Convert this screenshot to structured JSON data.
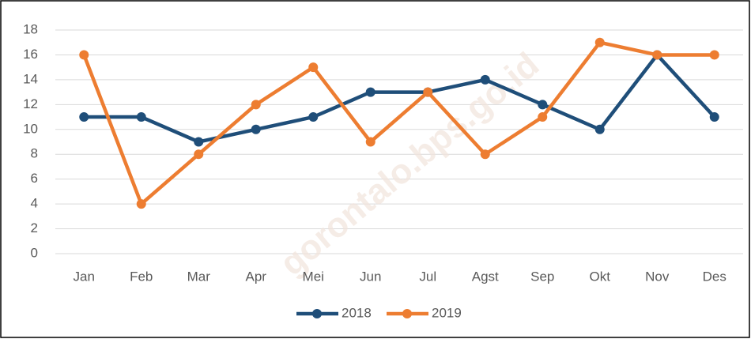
{
  "chart_data": {
    "type": "line",
    "categories": [
      "Jan",
      "Feb",
      "Mar",
      "Apr",
      "Mei",
      "Jun",
      "Jul",
      "Agst",
      "Sep",
      "Okt",
      "Nov",
      "Des"
    ],
    "series": [
      {
        "name": "2018",
        "color": "#1f4e79",
        "values": [
          11,
          11,
          9,
          10,
          11,
          13,
          13,
          14,
          12,
          10,
          16,
          11
        ]
      },
      {
        "name": "2019",
        "color": "#ed7d31",
        "values": [
          16,
          4,
          8,
          12,
          15,
          9,
          13,
          8,
          11,
          17,
          16,
          16
        ]
      }
    ],
    "ylim": [
      0,
      18
    ],
    "yticks": [
      0,
      2,
      4,
      6,
      8,
      10,
      12,
      14,
      16,
      18
    ],
    "grid": true,
    "legend": "bottom",
    "watermark": "gorontalo.bps.go.id"
  }
}
